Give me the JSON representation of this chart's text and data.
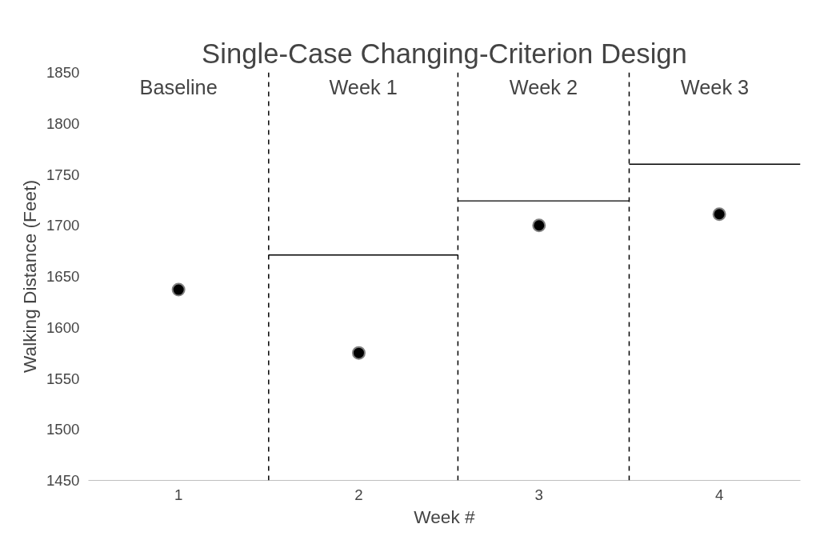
{
  "chart_data": {
    "type": "scatter",
    "title": "Single-Case Changing-Criterion Design",
    "xlabel": "Week #",
    "ylabel": "Walking Distance (Feet)",
    "xlim": [
      0.5,
      4.45
    ],
    "xticks": [
      1,
      2,
      3,
      4
    ],
    "ylim": [
      1450,
      1850
    ],
    "yticks": [
      1450,
      1500,
      1550,
      1600,
      1650,
      1700,
      1750,
      1800,
      1850
    ],
    "grid": false,
    "marker": "circle",
    "series": [
      {
        "color": "#000000",
        "x": [
          1,
          2,
          3,
          4
        ],
        "values": [
          1637,
          1575,
          1700,
          1711
        ]
      },
      {
        "type": "line",
        "color": "#000000",
        "line_style": "solid",
        "marker": "none",
        "x": [
          1.5,
          2.55
        ],
        "values": [
          1671,
          1671
        ]
      },
      {
        "type": "line",
        "color": "#000000",
        "line_style": "solid",
        "marker": "none",
        "x": [
          2.55,
          3.5
        ],
        "values": [
          1724,
          1724
        ]
      },
      {
        "type": "line",
        "color": "#000000",
        "line_style": "solid",
        "marker": "none",
        "x": [
          3.5,
          4.45
        ],
        "values": [
          1760,
          1760
        ]
      }
    ],
    "ref_lines": [
      {
        "axis": "x",
        "value": 1.5,
        "line_style": "dashed",
        "color": "#000000"
      },
      {
        "axis": "x",
        "value": 2.55,
        "line_style": "dashed",
        "color": "#000000"
      },
      {
        "axis": "x",
        "value": 3.5,
        "line_style": "dashed",
        "color": "#000000"
      }
    ],
    "annotations": [
      "Baseline",
      "Week 1",
      "Week 2",
      "Week 3"
    ]
  }
}
